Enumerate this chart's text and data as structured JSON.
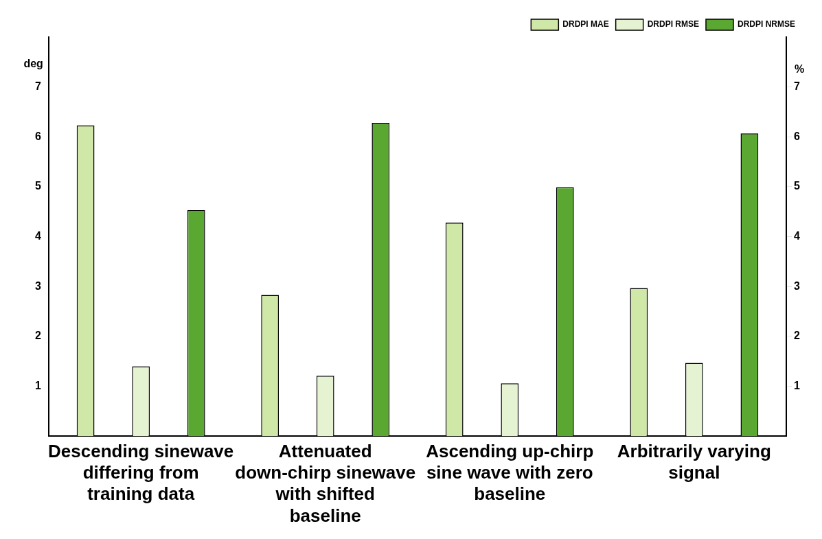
{
  "chart_data": {
    "type": "bar",
    "categories": [
      "Descending sinewave differing from training data",
      "Attenuated down-chirp sinewave with shifted baseline",
      "Ascending up-chirp sine wave with zero baseline",
      "Arbitrarily varying signal"
    ],
    "ylabel": "deg",
    "y2label": "%",
    "ylim": [
      0,
      8
    ],
    "yticks": [
      1,
      2,
      3,
      4,
      5,
      6,
      7
    ],
    "y2lim": [
      0,
      8
    ],
    "y2ticks": [
      1,
      2,
      3,
      4,
      5,
      6,
      7
    ],
    "grid": false,
    "legend": "top right",
    "series": [
      {
        "name": "DRDPI MAE",
        "color": "#cfe8a8",
        "values": [
          6.23,
          2.83,
          4.28,
          2.97
        ]
      },
      {
        "name": "DRDPI RMSE",
        "color": "#e6f3d3",
        "values": [
          1.4,
          1.21,
          1.06,
          1.47
        ]
      },
      {
        "name": "DRDPI NRMSE",
        "color": "#5aa832",
        "values": [
          4.53,
          6.28,
          4.99,
          6.07
        ],
        "axis": "y2"
      }
    ]
  }
}
